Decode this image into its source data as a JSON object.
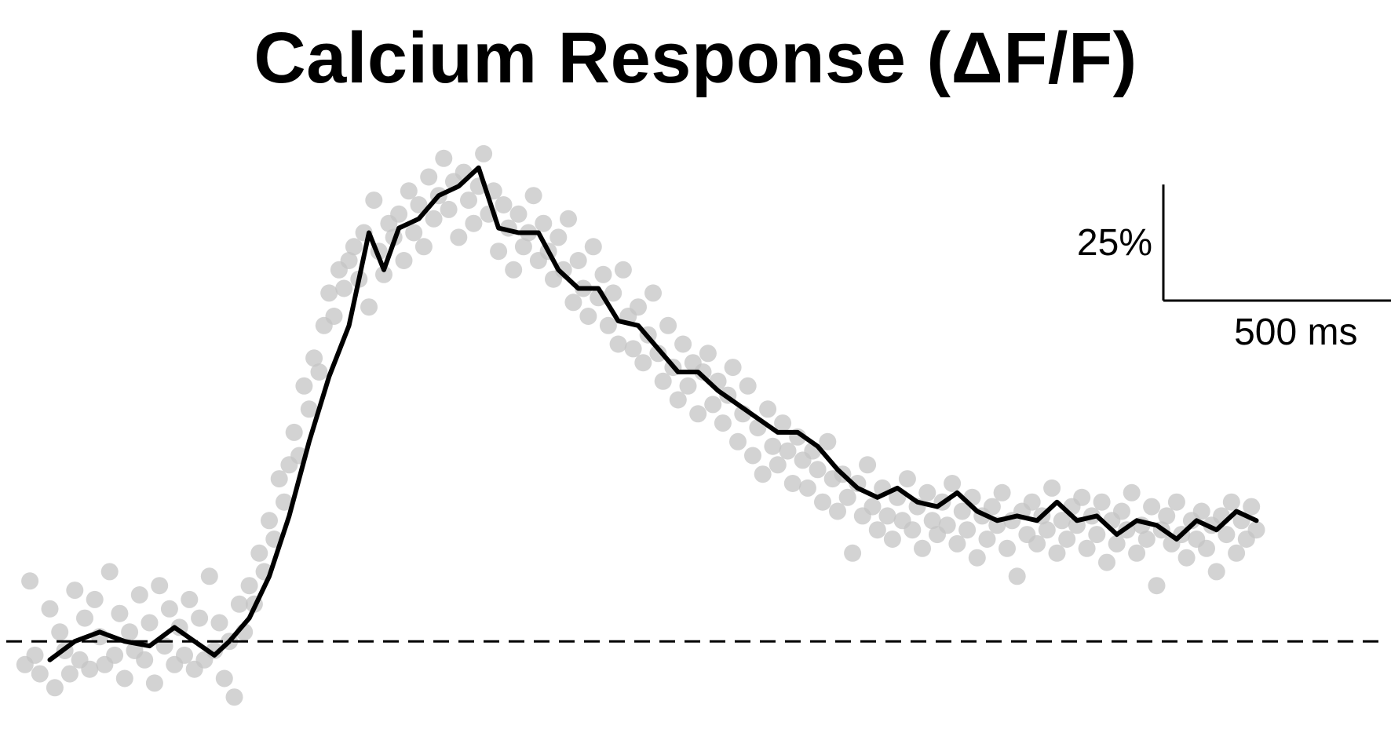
{
  "chart_data": {
    "type": "scatter",
    "title": "Calcium Response (ΔF/F)",
    "xlabel": "",
    "ylabel": "",
    "x_unit": "ms",
    "y_unit": "% ΔF/F",
    "xlim": [
      -40,
      2750
    ],
    "ylim": [
      -14,
      106
    ],
    "axes_visible": false,
    "grid": false,
    "legend": "none",
    "baseline": {
      "y": 0,
      "style": "dashed",
      "color": "#000000"
    },
    "scale_bar": {
      "x_label": "500 ms",
      "y_label": "25%",
      "x_value": 500,
      "y_value": 25,
      "placement": "top-right"
    },
    "colors": {
      "mean_trace": "#000000",
      "points": "#c4c4c4",
      "background": "#ffffff"
    },
    "mean_trace": [
      [
        60,
        -4
      ],
      [
        110,
        0
      ],
      [
        160,
        2
      ],
      [
        210,
        0
      ],
      [
        260,
        -1
      ],
      [
        310,
        3
      ],
      [
        350,
        0
      ],
      [
        390,
        -3
      ],
      [
        420,
        0
      ],
      [
        460,
        5
      ],
      [
        500,
        14
      ],
      [
        540,
        27
      ],
      [
        580,
        43
      ],
      [
        620,
        57
      ],
      [
        660,
        68
      ],
      [
        700,
        88
      ],
      [
        730,
        80
      ],
      [
        760,
        89
      ],
      [
        800,
        91
      ],
      [
        840,
        96
      ],
      [
        880,
        98
      ],
      [
        920,
        102
      ],
      [
        960,
        89
      ],
      [
        1000,
        88
      ],
      [
        1040,
        88
      ],
      [
        1080,
        80
      ],
      [
        1120,
        76
      ],
      [
        1160,
        76
      ],
      [
        1200,
        69
      ],
      [
        1240,
        68
      ],
      [
        1280,
        63
      ],
      [
        1320,
        58
      ],
      [
        1360,
        58
      ],
      [
        1400,
        54
      ],
      [
        1440,
        51
      ],
      [
        1480,
        48
      ],
      [
        1520,
        45
      ],
      [
        1560,
        45
      ],
      [
        1600,
        42
      ],
      [
        1640,
        37
      ],
      [
        1680,
        33
      ],
      [
        1720,
        31
      ],
      [
        1760,
        33
      ],
      [
        1800,
        30
      ],
      [
        1840,
        29
      ],
      [
        1880,
        32
      ],
      [
        1920,
        28
      ],
      [
        1960,
        26
      ],
      [
        2000,
        27
      ],
      [
        2040,
        26
      ],
      [
        2080,
        30
      ],
      [
        2120,
        26
      ],
      [
        2160,
        27
      ],
      [
        2200,
        23
      ],
      [
        2240,
        26
      ],
      [
        2280,
        25
      ],
      [
        2320,
        22
      ],
      [
        2360,
        26
      ],
      [
        2400,
        24
      ],
      [
        2440,
        28
      ],
      [
        2480,
        26
      ]
    ],
    "points": [
      [
        10,
        -5
      ],
      [
        20,
        13
      ],
      [
        30,
        -3
      ],
      [
        40,
        -7
      ],
      [
        60,
        7
      ],
      [
        70,
        -10
      ],
      [
        80,
        2
      ],
      [
        90,
        -2
      ],
      [
        100,
        -7
      ],
      [
        110,
        11
      ],
      [
        120,
        -4
      ],
      [
        130,
        5
      ],
      [
        140,
        -6
      ],
      [
        150,
        9
      ],
      [
        160,
        1
      ],
      [
        170,
        -5
      ],
      [
        180,
        15
      ],
      [
        190,
        -3
      ],
      [
        200,
        6
      ],
      [
        210,
        -8
      ],
      [
        220,
        2
      ],
      [
        230,
        -2
      ],
      [
        240,
        10
      ],
      [
        250,
        -4
      ],
      [
        260,
        4
      ],
      [
        270,
        -9
      ],
      [
        280,
        12
      ],
      [
        290,
        -1
      ],
      [
        300,
        7
      ],
      [
        310,
        -5
      ],
      [
        320,
        3
      ],
      [
        330,
        -3
      ],
      [
        340,
        9
      ],
      [
        350,
        -6
      ],
      [
        360,
        5
      ],
      [
        370,
        -4
      ],
      [
        380,
        14
      ],
      [
        390,
        -2
      ],
      [
        400,
        4
      ],
      [
        410,
        -8
      ],
      [
        420,
        0
      ],
      [
        430,
        -12
      ],
      [
        440,
        8
      ],
      [
        450,
        2
      ],
      [
        460,
        12
      ],
      [
        470,
        8
      ],
      [
        480,
        19
      ],
      [
        490,
        15
      ],
      [
        500,
        26
      ],
      [
        510,
        22
      ],
      [
        520,
        35
      ],
      [
        530,
        30
      ],
      [
        540,
        38
      ],
      [
        550,
        45
      ],
      [
        560,
        40
      ],
      [
        570,
        55
      ],
      [
        580,
        50
      ],
      [
        590,
        61
      ],
      [
        600,
        58
      ],
      [
        610,
        68
      ],
      [
        620,
        75
      ],
      [
        630,
        70
      ],
      [
        640,
        80
      ],
      [
        650,
        76
      ],
      [
        660,
        82
      ],
      [
        670,
        85
      ],
      [
        680,
        78
      ],
      [
        690,
        88
      ],
      [
        700,
        72
      ],
      [
        710,
        95
      ],
      [
        720,
        84
      ],
      [
        730,
        79
      ],
      [
        740,
        90
      ],
      [
        750,
        87
      ],
      [
        760,
        92
      ],
      [
        770,
        82
      ],
      [
        780,
        97
      ],
      [
        790,
        88
      ],
      [
        800,
        94
      ],
      [
        810,
        85
      ],
      [
        820,
        100
      ],
      [
        830,
        91
      ],
      [
        840,
        96
      ],
      [
        850,
        104
      ],
      [
        860,
        93
      ],
      [
        870,
        99
      ],
      [
        880,
        87
      ],
      [
        890,
        101
      ],
      [
        900,
        95
      ],
      [
        910,
        90
      ],
      [
        920,
        98
      ],
      [
        930,
        105
      ],
      [
        940,
        92
      ],
      [
        950,
        97
      ],
      [
        960,
        84
      ],
      [
        970,
        94
      ],
      [
        980,
        89
      ],
      [
        990,
        80
      ],
      [
        1000,
        92
      ],
      [
        1010,
        85
      ],
      [
        1020,
        88
      ],
      [
        1030,
        96
      ],
      [
        1040,
        82
      ],
      [
        1050,
        90
      ],
      [
        1060,
        84
      ],
      [
        1070,
        78
      ],
      [
        1080,
        87
      ],
      [
        1090,
        80
      ],
      [
        1100,
        91
      ],
      [
        1110,
        73
      ],
      [
        1120,
        82
      ],
      [
        1130,
        76
      ],
      [
        1140,
        70
      ],
      [
        1150,
        85
      ],
      [
        1160,
        74
      ],
      [
        1170,
        79
      ],
      [
        1180,
        68
      ],
      [
        1190,
        75
      ],
      [
        1200,
        64
      ],
      [
        1210,
        80
      ],
      [
        1220,
        70
      ],
      [
        1230,
        63
      ],
      [
        1240,
        72
      ],
      [
        1250,
        60
      ],
      [
        1260,
        66
      ],
      [
        1270,
        75
      ],
      [
        1280,
        62
      ],
      [
        1290,
        56
      ],
      [
        1300,
        68
      ],
      [
        1310,
        59
      ],
      [
        1320,
        52
      ],
      [
        1330,
        64
      ],
      [
        1340,
        55
      ],
      [
        1350,
        60
      ],
      [
        1360,
        49
      ],
      [
        1370,
        58
      ],
      [
        1380,
        62
      ],
      [
        1390,
        51
      ],
      [
        1400,
        56
      ],
      [
        1410,
        47
      ],
      [
        1420,
        53
      ],
      [
        1430,
        59
      ],
      [
        1440,
        43
      ],
      [
        1450,
        49
      ],
      [
        1460,
        55
      ],
      [
        1470,
        40
      ],
      [
        1480,
        46
      ],
      [
        1490,
        36
      ],
      [
        1500,
        50
      ],
      [
        1510,
        42
      ],
      [
        1520,
        38
      ],
      [
        1530,
        47
      ],
      [
        1540,
        41
      ],
      [
        1550,
        34
      ],
      [
        1560,
        44
      ],
      [
        1570,
        39
      ],
      [
        1580,
        33
      ],
      [
        1590,
        41
      ],
      [
        1600,
        37
      ],
      [
        1610,
        30
      ],
      [
        1620,
        43
      ],
      [
        1630,
        35
      ],
      [
        1640,
        28
      ],
      [
        1650,
        36
      ],
      [
        1660,
        31
      ],
      [
        1670,
        19
      ],
      [
        1680,
        34
      ],
      [
        1690,
        27
      ],
      [
        1700,
        38
      ],
      [
        1710,
        29
      ],
      [
        1720,
        24
      ],
      [
        1730,
        33
      ],
      [
        1740,
        27
      ],
      [
        1750,
        22
      ],
      [
        1760,
        31
      ],
      [
        1770,
        26
      ],
      [
        1780,
        35
      ],
      [
        1790,
        24
      ],
      [
        1800,
        29
      ],
      [
        1810,
        20
      ],
      [
        1820,
        32
      ],
      [
        1830,
        26
      ],
      [
        1840,
        23
      ],
      [
        1850,
        30
      ],
      [
        1860,
        25
      ],
      [
        1870,
        34
      ],
      [
        1880,
        21
      ],
      [
        1890,
        28
      ],
      [
        1900,
        24
      ],
      [
        1910,
        31
      ],
      [
        1920,
        18
      ],
      [
        1930,
        27
      ],
      [
        1940,
        22
      ],
      [
        1950,
        29
      ],
      [
        1960,
        25
      ],
      [
        1970,
        32
      ],
      [
        1980,
        20
      ],
      [
        1990,
        26
      ],
      [
        2000,
        14
      ],
      [
        2010,
        28
      ],
      [
        2020,
        23
      ],
      [
        2030,
        30
      ],
      [
        2040,
        21
      ],
      [
        2050,
        27
      ],
      [
        2060,
        24
      ],
      [
        2070,
        33
      ],
      [
        2080,
        19
      ],
      [
        2090,
        26
      ],
      [
        2100,
        22
      ],
      [
        2110,
        29
      ],
      [
        2120,
        25
      ],
      [
        2130,
        31
      ],
      [
        2140,
        20
      ],
      [
        2150,
        27
      ],
      [
        2160,
        23
      ],
      [
        2170,
        30
      ],
      [
        2180,
        17
      ],
      [
        2190,
        26
      ],
      [
        2200,
        21
      ],
      [
        2210,
        28
      ],
      [
        2220,
        24
      ],
      [
        2230,
        32
      ],
      [
        2240,
        19
      ],
      [
        2250,
        25
      ],
      [
        2260,
        22
      ],
      [
        2270,
        29
      ],
      [
        2280,
        12
      ],
      [
        2290,
        24
      ],
      [
        2300,
        27
      ],
      [
        2310,
        21
      ],
      [
        2320,
        30
      ],
      [
        2330,
        23
      ],
      [
        2340,
        18
      ],
      [
        2350,
        26
      ],
      [
        2360,
        22
      ],
      [
        2370,
        28
      ],
      [
        2380,
        20
      ],
      [
        2390,
        25
      ],
      [
        2400,
        15
      ],
      [
        2410,
        27
      ],
      [
        2420,
        23
      ],
      [
        2430,
        30
      ],
      [
        2440,
        19
      ],
      [
        2450,
        26
      ],
      [
        2460,
        22
      ],
      [
        2470,
        29
      ],
      [
        2480,
        24
      ]
    ]
  }
}
